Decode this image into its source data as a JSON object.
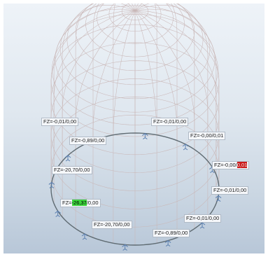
{
  "viewport": {
    "background_top": "#eef3f8",
    "background_bottom": "#b8c7d8",
    "wireframe_color": "#c9b7b7"
  },
  "reactions": [
    {
      "id": "r1",
      "prefix": "FZ=",
      "value": "-0,01",
      "suffix": "/0,00",
      "highlight": ""
    },
    {
      "id": "r2",
      "prefix": "FZ=",
      "value": "-0,01",
      "suffix": "/0,00",
      "highlight": ""
    },
    {
      "id": "r3",
      "prefix": "FZ=",
      "value": "-0,89",
      "suffix": "/0,00",
      "highlight": ""
    },
    {
      "id": "r4",
      "prefix": "FZ=",
      "value": "-0,00",
      "suffix": "/0,01",
      "highlight": ""
    },
    {
      "id": "r5",
      "prefix": "FZ=",
      "value": "-20,70",
      "suffix": "/0,00",
      "highlight": ""
    },
    {
      "id": "r6",
      "prefix": "FZ=-0,00/",
      "value": "0,01",
      "suffix": "",
      "highlight": "red"
    },
    {
      "id": "r7",
      "prefix": "FZ=",
      "value": "-0,01",
      "suffix": "/0,00",
      "highlight": ""
    },
    {
      "id": "r8",
      "prefix": "FZ=",
      "value": "-26,37",
      "suffix": "/0,00",
      "highlight": "green"
    },
    {
      "id": "r9",
      "prefix": "FZ=",
      "value": "-0,01",
      "suffix": "/0,00",
      "highlight": ""
    },
    {
      "id": "r10",
      "prefix": "FZ=",
      "value": "-20,70",
      "suffix": "/0,00",
      "highlight": ""
    },
    {
      "id": "r11",
      "prefix": "FZ=",
      "value": "-0,89",
      "suffix": "/0,00",
      "highlight": ""
    }
  ]
}
